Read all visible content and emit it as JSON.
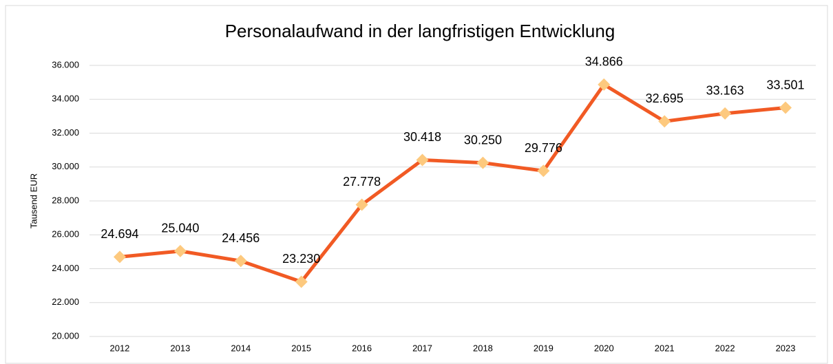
{
  "chart_data": {
    "type": "line",
    "title": "Personalaufwand in der langfristigen Entwicklung",
    "y_label": "Tausend EUR",
    "categories": [
      "2012",
      "2013",
      "2014",
      "2015",
      "2016",
      "2017",
      "2018",
      "2019",
      "2020",
      "2021",
      "2022",
      "2023"
    ],
    "series": [
      {
        "color": "#f15a24",
        "marker_color": "#fdc97e",
        "values": [
          24694,
          25040,
          24456,
          23230,
          27778,
          30418,
          30250,
          29776,
          34866,
          32695,
          33163,
          33501
        ],
        "value_labels": [
          "24.694",
          "25.040",
          "24.456",
          "23.230",
          "27.778",
          "30.418",
          "30.250",
          "29.776",
          "34.866",
          "32.695",
          "33.163",
          "33.501"
        ]
      }
    ],
    "ylim": [
      20000,
      36000
    ],
    "yticks": [
      {
        "value": 20000,
        "label": "20.000"
      },
      {
        "value": 22000,
        "label": "22.000"
      },
      {
        "value": 24000,
        "label": "24.000"
      },
      {
        "value": 26000,
        "label": "26.000"
      },
      {
        "value": 28000,
        "label": "28.000"
      },
      {
        "value": 30000,
        "label": "30.000"
      },
      {
        "value": 32000,
        "label": "32.000"
      },
      {
        "value": 34000,
        "label": "34.000"
      },
      {
        "value": 36000,
        "label": "36.000"
      }
    ],
    "grid": true
  }
}
